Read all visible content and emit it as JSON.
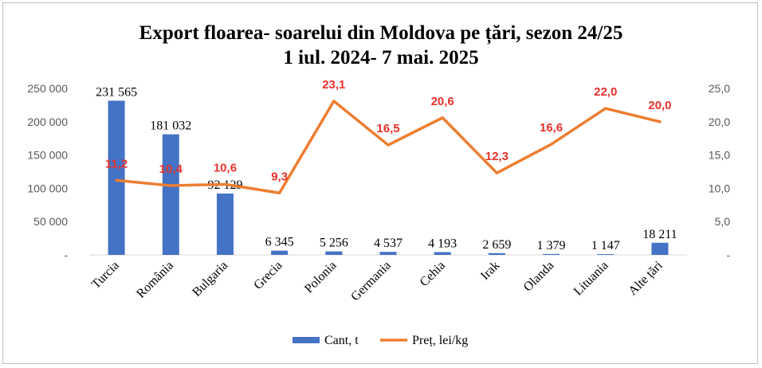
{
  "chart_data": {
    "type": "bar",
    "title": "Export floarea- soarelui din Moldova pe țări, sezon 24/25",
    "subtitle": "1 iul. 2024- 7 mai. 2025",
    "categories": [
      "Turcia",
      "România",
      "Bulgaria",
      "Grecia",
      "Polonia",
      "Germania",
      "Cehia",
      "Irak",
      "Olanda",
      "Lituania",
      "Alte țări"
    ],
    "series": [
      {
        "name": "Cant, t",
        "type": "bar",
        "axis": "left",
        "color": "#4472c4",
        "values": [
          231565,
          181032,
          92129,
          6345,
          5256,
          4537,
          4193,
          2659,
          1379,
          1147,
          18211
        ],
        "labels": [
          "231 565",
          "181 032",
          "92 129",
          "6 345",
          "5 256",
          "4 537",
          "4 193",
          "2 659",
          "1 379",
          "1 147",
          "18 211"
        ]
      },
      {
        "name": "Preț, lei/kg",
        "type": "line",
        "axis": "right",
        "color": "#ed7d31",
        "label_color": "#e8322b",
        "values": [
          11.2,
          10.4,
          10.6,
          9.3,
          23.1,
          16.5,
          20.6,
          12.3,
          16.6,
          22.0,
          20.0
        ],
        "labels": [
          "11,2",
          "10,4",
          "10,6",
          "9,3",
          "23,1",
          "16,5",
          "20,6",
          "12,3",
          "16,6",
          "22,0",
          "20,0"
        ]
      }
    ],
    "y_left": {
      "ylim": [
        0,
        250000
      ],
      "ticks": [
        0,
        50000,
        100000,
        150000,
        200000,
        250000
      ],
      "tick_labels": [
        "-",
        "50 000",
        "100 000",
        "150 000",
        "200 000",
        "250 000"
      ]
    },
    "y_right": {
      "ylim": [
        0,
        25
      ],
      "ticks": [
        0,
        5,
        10,
        15,
        20,
        25
      ],
      "tick_labels": [
        "-",
        "5,0",
        "10,0",
        "15,0",
        "20,0",
        "25,0"
      ]
    },
    "grid": false,
    "legend": "bottom"
  }
}
